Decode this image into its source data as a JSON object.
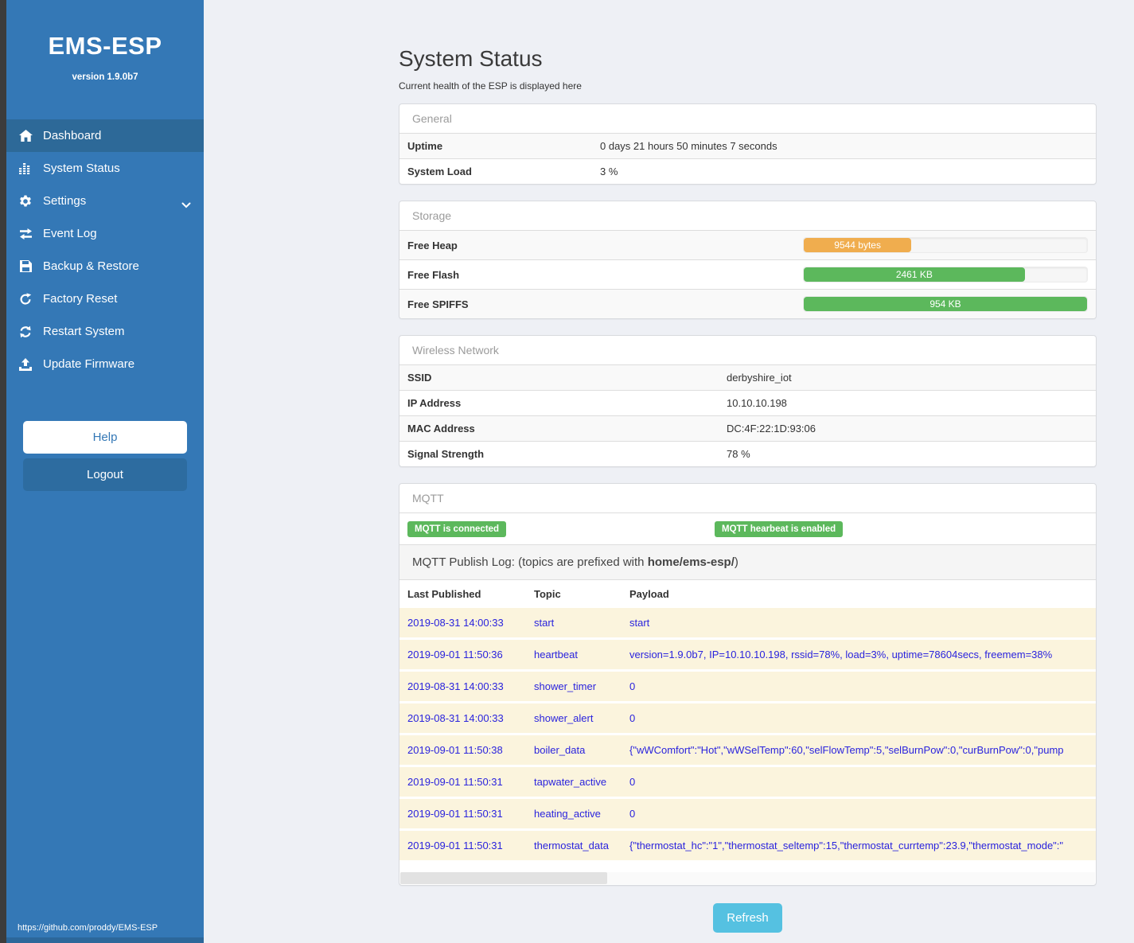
{
  "sidebar": {
    "title": "EMS-ESP",
    "version": "version 1.9.0b7",
    "menu": [
      {
        "label": "Dashboard",
        "icon": "home-icon",
        "active": true
      },
      {
        "label": "System Status",
        "icon": "chart-icon",
        "active": false
      },
      {
        "label": "Settings",
        "icon": "gear-icon",
        "active": false,
        "chevron": true
      },
      {
        "label": "Event Log",
        "icon": "exchange-icon",
        "active": false
      },
      {
        "label": "Backup & Restore",
        "icon": "save-icon",
        "active": false
      },
      {
        "label": "Factory Reset",
        "icon": "rotate-icon",
        "active": false
      },
      {
        "label": "Restart System",
        "icon": "refresh-icon",
        "active": false
      },
      {
        "label": "Update Firmware",
        "icon": "upload-icon",
        "active": false
      }
    ],
    "help_label": "Help",
    "logout_label": "Logout",
    "footer_url": "https://github.com/proddy/EMS-ESP"
  },
  "page": {
    "title": "System Status",
    "subtitle": "Current health of the ESP is displayed here"
  },
  "general": {
    "header": "General",
    "rows": [
      {
        "label": "Uptime",
        "value": "0 days 21 hours 50 minutes 7 seconds"
      },
      {
        "label": "System Load",
        "value": "3 %"
      }
    ]
  },
  "storage": {
    "header": "Storage",
    "rows": [
      {
        "label": "Free Heap",
        "bar_label": "9544 bytes",
        "percent": 38,
        "color": "#f0ad4e"
      },
      {
        "label": "Free Flash",
        "bar_label": "2461 KB",
        "percent": 78,
        "color": "#5cb85c"
      },
      {
        "label": "Free SPIFFS",
        "bar_label": "954 KB",
        "percent": 100,
        "color": "#5cb85c"
      }
    ]
  },
  "wireless": {
    "header": "Wireless Network",
    "rows": [
      {
        "label": "SSID",
        "value": "derbyshire_iot"
      },
      {
        "label": "IP Address",
        "value": "10.10.10.198"
      },
      {
        "label": "MAC Address",
        "value": "DC:4F:22:1D:93:06"
      },
      {
        "label": "Signal Strength",
        "value": "78 %"
      }
    ]
  },
  "mqtt": {
    "header": "MQTT",
    "badge_connected": "MQTT is connected",
    "badge_heartbeat": "MQTT hearbeat is enabled",
    "publog_prefix": "MQTT Publish Log: (topics are prefixed with ",
    "publog_bold": "home/ems-esp/",
    "publog_suffix": ")",
    "columns": [
      "Last Published",
      "Topic",
      "Payload"
    ],
    "rows": [
      {
        "time": "2019-08-31 14:00:33",
        "topic": "start",
        "payload": "start"
      },
      {
        "time": "2019-09-01 11:50:36",
        "topic": "heartbeat",
        "payload": "version=1.9.0b7, IP=10.10.10.198, rssid=78%, load=3%, uptime=78604secs, freemem=38%"
      },
      {
        "time": "2019-08-31 14:00:33",
        "topic": "shower_timer",
        "payload": "0"
      },
      {
        "time": "2019-08-31 14:00:33",
        "topic": "shower_alert",
        "payload": "0"
      },
      {
        "time": "2019-09-01 11:50:38",
        "topic": "boiler_data",
        "payload": "{\"wWComfort\":\"Hot\",\"wWSelTemp\":60,\"selFlowTemp\":5,\"selBurnPow\":0,\"curBurnPow\":0,\"pump"
      },
      {
        "time": "2019-09-01 11:50:31",
        "topic": "tapwater_active",
        "payload": "0"
      },
      {
        "time": "2019-09-01 11:50:31",
        "topic": "heating_active",
        "payload": "0"
      },
      {
        "time": "2019-09-01 11:50:31",
        "topic": "thermostat_data",
        "payload": "{\"thermostat_hc\":\"1\",\"thermostat_seltemp\":15,\"thermostat_currtemp\":23.9,\"thermostat_mode\":\""
      }
    ]
  },
  "refresh_label": "Refresh",
  "colors": {
    "sidebar": "#3478b6",
    "sidebar_active": "#2d6998",
    "badge_green": "#5cb85c",
    "bar_orange": "#f0ad4e",
    "bar_green": "#5cb85c",
    "refresh_blue": "#55c1e1",
    "log_row_bg": "#fbf4dd",
    "log_text_blue": "#2a23dd"
  }
}
